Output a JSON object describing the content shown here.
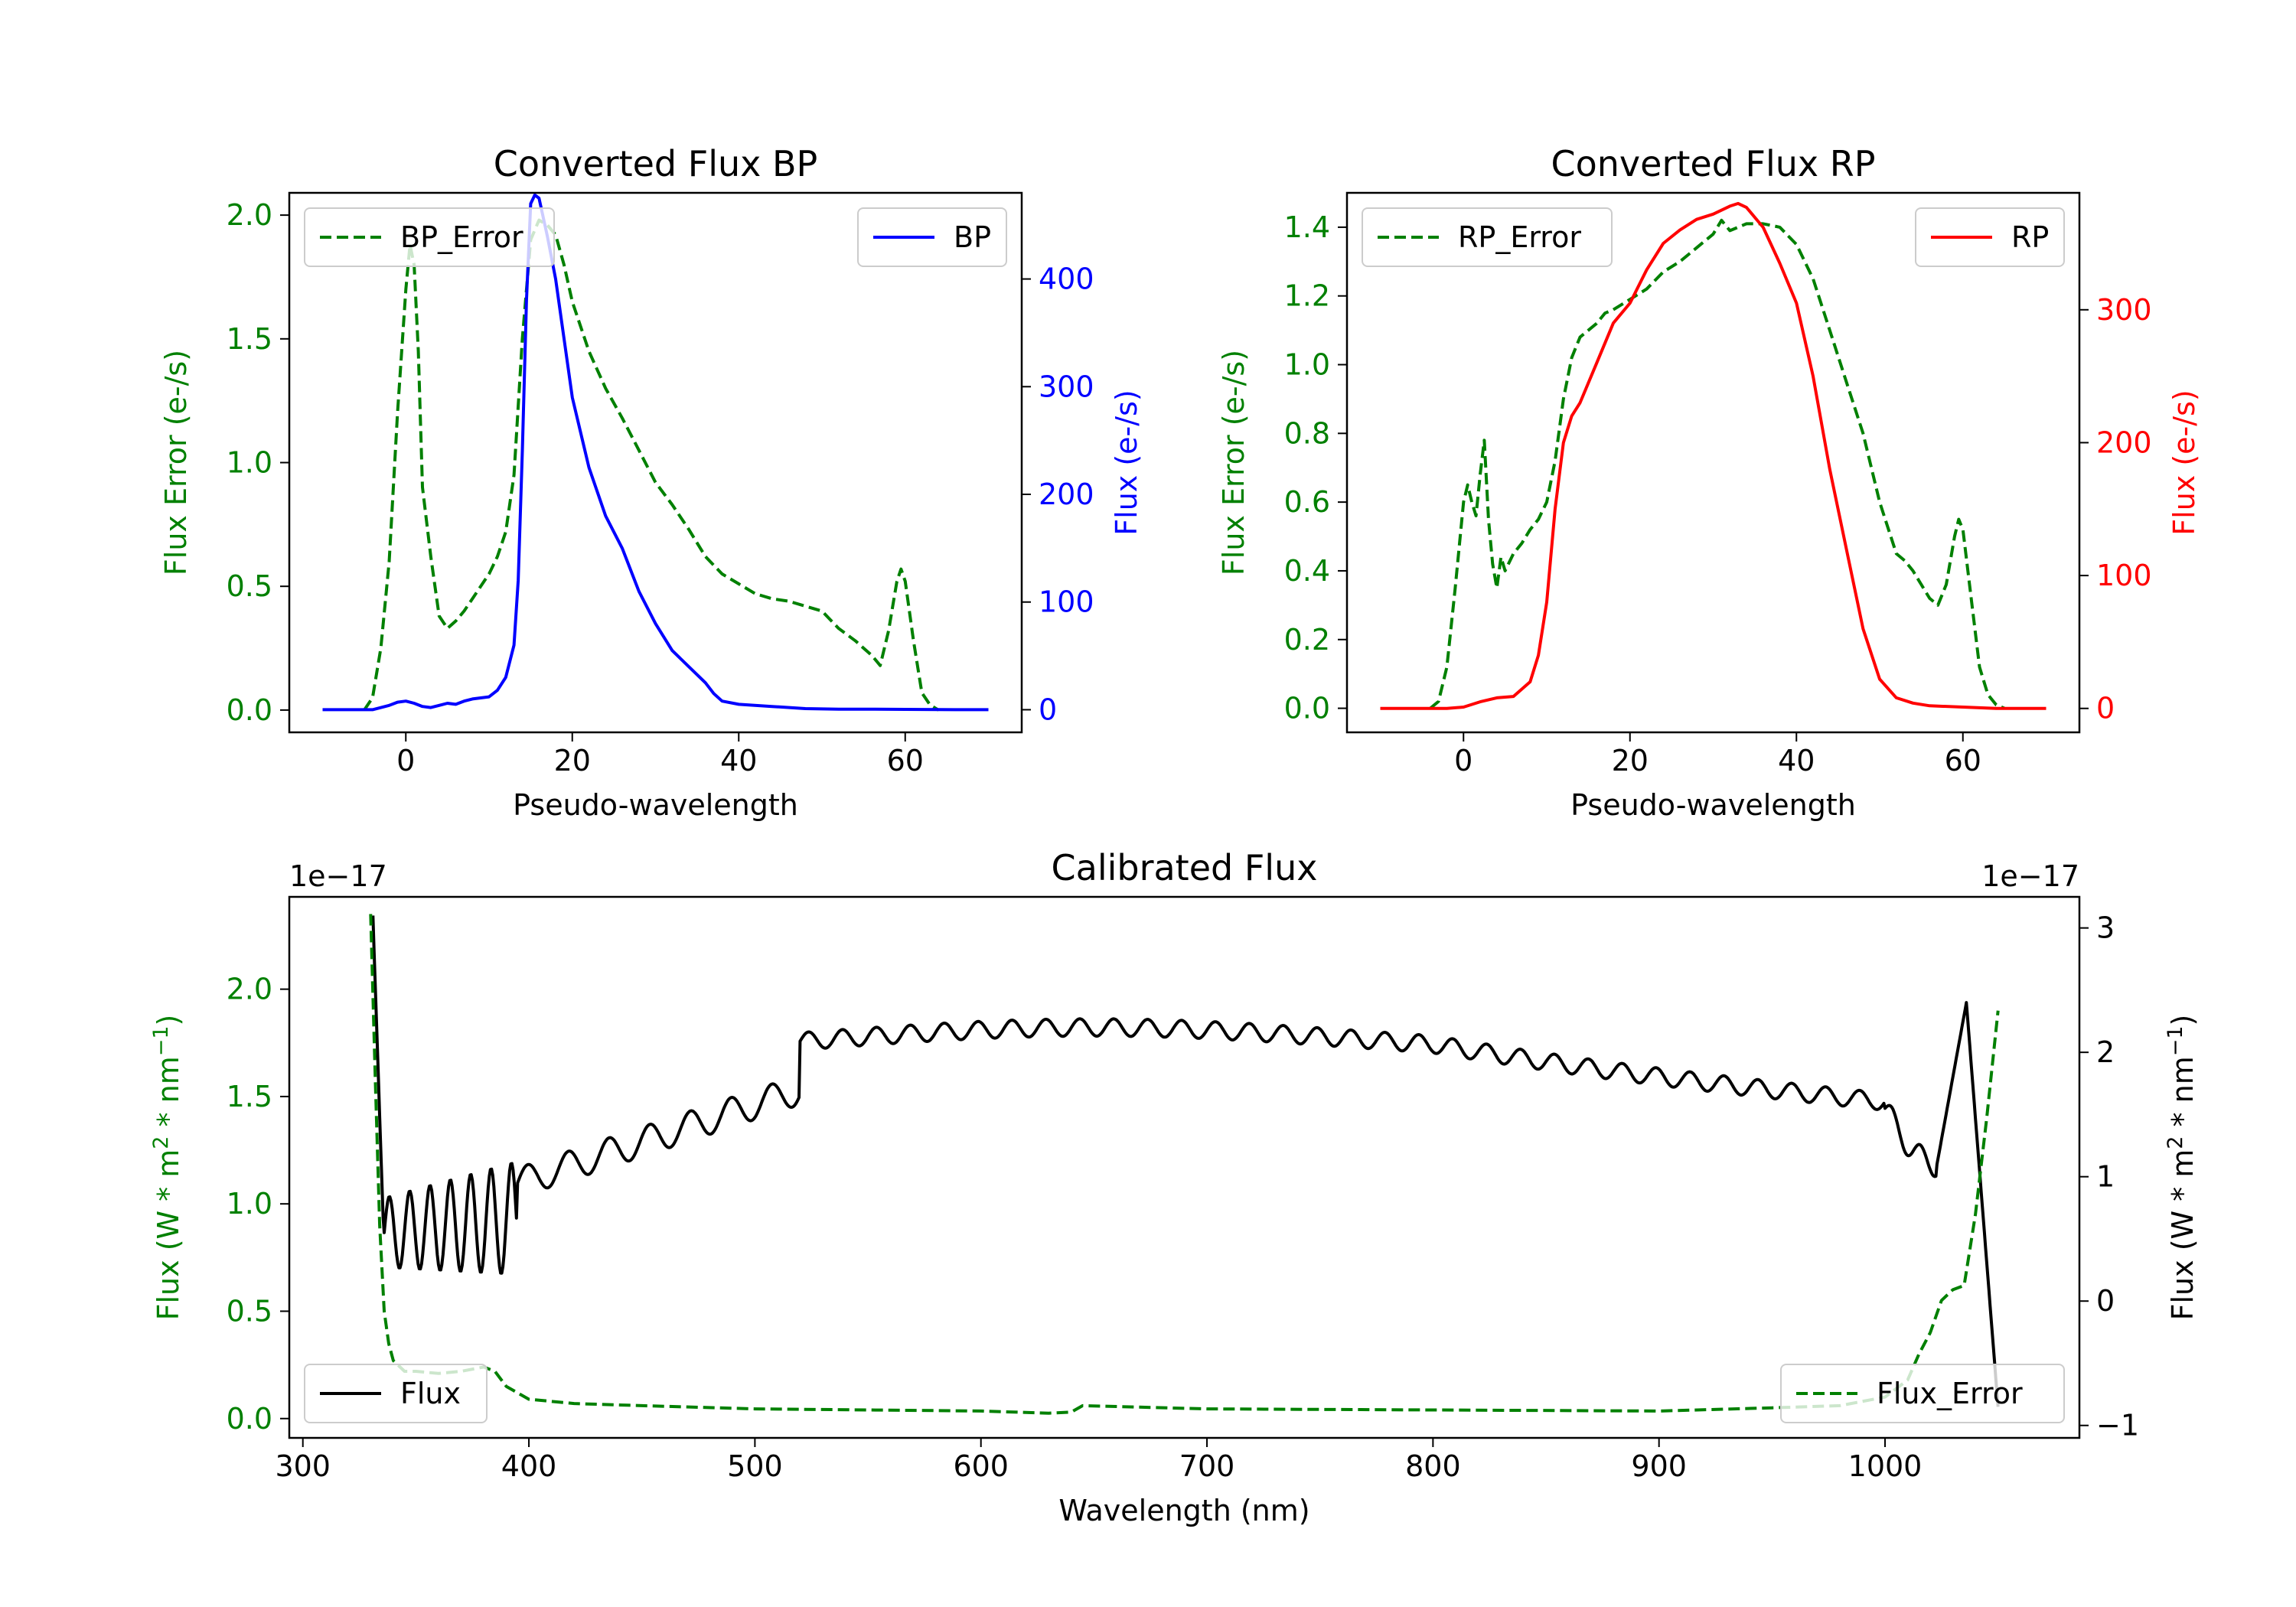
{
  "chart_data": [
    {
      "type": "line",
      "title": "Converted Flux BP",
      "xlabel": "Pseudo-wavelength",
      "ylabel_left": "Flux Error (e-/s)",
      "ylabel_right": "Flux (e-/s)",
      "xlim": [
        -14,
        74
      ],
      "ylim_left": [
        -0.09,
        2.09
      ],
      "ylim_right": [
        -21,
        480
      ],
      "xticks": [
        0,
        20,
        40,
        60
      ],
      "yticks_left": [
        "0.0",
        "0.5",
        "1.0",
        "1.5",
        "2.0"
      ],
      "yticks_right": [
        "0",
        "100",
        "200",
        "300",
        "400"
      ],
      "colors": {
        "left": "#008000",
        "right": "#0000ff"
      },
      "series": [
        {
          "name": "BP_Error",
          "axis": "left",
          "style": "dashed",
          "color": "#008000",
          "x": [
            -5,
            -4,
            -3,
            -2,
            -1,
            0,
            0.5,
            1,
            1.5,
            2,
            3,
            4,
            5,
            6,
            7,
            8,
            9,
            10,
            11,
            12,
            13,
            14,
            15,
            16,
            17,
            18,
            19,
            20,
            22,
            24,
            26,
            28,
            30,
            32,
            34,
            36,
            38,
            40,
            42,
            44,
            46,
            48,
            50,
            52,
            54,
            56,
            57,
            58,
            59,
            59.5,
            60,
            61,
            62,
            63,
            64
          ],
          "y": [
            0,
            0.05,
            0.25,
            0.6,
            1.2,
            1.7,
            1.88,
            1.8,
            1.45,
            0.9,
            0.62,
            0.38,
            0.33,
            0.36,
            0.4,
            0.45,
            0.5,
            0.55,
            0.62,
            0.72,
            0.95,
            1.5,
            1.9,
            1.98,
            1.96,
            1.92,
            1.8,
            1.65,
            1.45,
            1.3,
            1.18,
            1.05,
            0.92,
            0.83,
            0.73,
            0.62,
            0.55,
            0.51,
            0.47,
            0.45,
            0.44,
            0.42,
            0.4,
            0.33,
            0.28,
            0.22,
            0.18,
            0.32,
            0.52,
            0.57,
            0.52,
            0.28,
            0.07,
            0.02,
            0
          ]
        },
        {
          "name": "BP",
          "axis": "right",
          "style": "solid",
          "color": "#0000ff",
          "x": [
            -10,
            -6,
            -4,
            -2,
            -1,
            0,
            1,
            2,
            3,
            4,
            5,
            6,
            7,
            8,
            9,
            10,
            11,
            12,
            13,
            13.5,
            14,
            14.5,
            15,
            15.5,
            16,
            17,
            18,
            19,
            20,
            22,
            24,
            26,
            28,
            30,
            32,
            34,
            36,
            37,
            38,
            40,
            44,
            48,
            52,
            56,
            60,
            64,
            66,
            70
          ],
          "y": [
            0,
            0,
            0,
            4,
            7,
            8,
            6,
            3,
            2,
            4,
            6,
            5,
            8,
            10,
            11,
            12,
            18,
            30,
            60,
            120,
            240,
            380,
            470,
            478,
            475,
            440,
            400,
            345,
            290,
            225,
            180,
            150,
            110,
            80,
            55,
            40,
            25,
            15,
            8,
            5,
            3,
            1,
            0.5,
            0.5,
            0.3,
            0.2,
            0,
            0
          ]
        }
      ],
      "legend": [
        {
          "label": "BP_Error",
          "placement": "upper-left"
        },
        {
          "label": "BP",
          "placement": "upper-right"
        }
      ]
    },
    {
      "type": "line",
      "title": "Converted Flux RP",
      "xlabel": "Pseudo-wavelength",
      "ylabel_left": "Flux Error (e-/s)",
      "ylabel_right": "Flux (e-/s)",
      "xlim": [
        -14,
        74
      ],
      "ylim_left": [
        -0.07,
        1.5
      ],
      "ylim_right": [
        -18,
        388
      ],
      "xticks": [
        0,
        20,
        40,
        60
      ],
      "yticks_left": [
        "0.0",
        "0.2",
        "0.4",
        "0.6",
        "0.8",
        "1.0",
        "1.2",
        "1.4"
      ],
      "yticks_right": [
        "0",
        "100",
        "200",
        "300"
      ],
      "colors": {
        "left": "#008000",
        "right": "#ff0000"
      },
      "series": [
        {
          "name": "RP_Error",
          "axis": "left",
          "style": "dashed",
          "color": "#008000",
          "x": [
            -4,
            -3,
            -2,
            -1,
            0,
            0.5,
            1,
            1.5,
            2,
            2.5,
            3,
            3.5,
            4,
            4.5,
            5,
            6,
            7,
            8,
            9,
            10,
            11,
            12,
            13,
            14,
            15,
            16,
            17,
            18,
            20,
            22,
            24,
            26,
            28,
            30,
            31,
            32,
            34,
            36,
            38,
            40,
            42,
            44,
            46,
            48,
            50,
            52,
            53,
            54,
            55,
            56,
            57,
            58,
            59,
            59.5,
            60,
            61,
            62,
            63,
            64,
            65
          ],
          "y": [
            0,
            0.02,
            0.12,
            0.35,
            0.6,
            0.65,
            0.6,
            0.56,
            0.68,
            0.78,
            0.55,
            0.42,
            0.35,
            0.44,
            0.4,
            0.45,
            0.48,
            0.52,
            0.55,
            0.6,
            0.72,
            0.9,
            1.02,
            1.08,
            1.1,
            1.12,
            1.15,
            1.16,
            1.19,
            1.22,
            1.27,
            1.3,
            1.34,
            1.38,
            1.42,
            1.39,
            1.41,
            1.41,
            1.4,
            1.35,
            1.25,
            1.1,
            0.95,
            0.8,
            0.6,
            0.45,
            0.43,
            0.4,
            0.36,
            0.32,
            0.3,
            0.36,
            0.5,
            0.55,
            0.52,
            0.32,
            0.12,
            0.04,
            0.01,
            0
          ]
        },
        {
          "name": "RP",
          "axis": "right",
          "style": "solid",
          "color": "#ff0000",
          "x": [
            -10,
            -4,
            -2,
            0,
            2,
            4,
            6,
            8,
            9,
            10,
            11,
            12,
            13,
            14,
            16,
            18,
            20,
            22,
            24,
            26,
            28,
            30,
            32,
            33,
            34,
            36,
            38,
            40,
            42,
            44,
            46,
            48,
            50,
            52,
            54,
            56,
            60,
            64,
            66,
            70
          ],
          "y": [
            0,
            0,
            0,
            1,
            5,
            8,
            9,
            20,
            40,
            80,
            150,
            200,
            220,
            230,
            260,
            290,
            305,
            330,
            350,
            360,
            368,
            372,
            378,
            380,
            377,
            362,
            335,
            305,
            250,
            180,
            120,
            60,
            22,
            8,
            4,
            2,
            1,
            0,
            0,
            0
          ]
        }
      ],
      "legend": [
        {
          "label": "RP_Error",
          "placement": "upper-left"
        },
        {
          "label": "RP",
          "placement": "upper-right"
        }
      ]
    },
    {
      "type": "line",
      "title": "Calibrated Flux",
      "xlabel": "Wavelength (nm)",
      "ylabel_left_plain": "Flux (W * m",
      "ylabel_left_sup1": "2",
      "ylabel_left_mid": " * nm",
      "ylabel_left_sup2": "−1",
      "ylabel_left_end": ")",
      "offset_left": "1e−17",
      "offset_right": "1e−17",
      "xlim": [
        294,
        1086
      ],
      "ylim_left": [
        -0.09,
        2.43
      ],
      "ylim_right": [
        -1.1,
        3.25
      ],
      "xticks": [
        300,
        400,
        500,
        600,
        700,
        800,
        900,
        1000
      ],
      "yticks_left": [
        "0.0",
        "0.5",
        "1.0",
        "1.5",
        "2.0"
      ],
      "yticks_right": [
        "−1",
        "0",
        "1",
        "2",
        "3"
      ],
      "colors": {
        "left": "#008000",
        "right": "#000000"
      },
      "series": [
        {
          "name": "Flux",
          "axis": "right",
          "style": "solid",
          "color": "#000000",
          "note": "oscillating curve; values in units of 1e-17"
        },
        {
          "name": "Flux_Error",
          "axis": "left",
          "style": "dashed",
          "color": "#008000",
          "x": [
            330,
            332,
            334,
            336,
            338,
            340,
            345,
            350,
            360,
            370,
            380,
            385,
            390,
            400,
            420,
            450,
            500,
            550,
            600,
            630,
            640,
            645,
            700,
            800,
            900,
            950,
            980,
            1000,
            1010,
            1015,
            1020,
            1025,
            1030,
            1035,
            1040,
            1045,
            1050
          ],
          "y": [
            2.35,
            1.6,
            0.9,
            0.5,
            0.35,
            0.27,
            0.22,
            0.22,
            0.21,
            0.22,
            0.24,
            0.22,
            0.15,
            0.09,
            0.07,
            0.06,
            0.045,
            0.04,
            0.035,
            0.025,
            0.03,
            0.06,
            0.045,
            0.04,
            0.035,
            0.05,
            0.06,
            0.1,
            0.18,
            0.3,
            0.4,
            0.55,
            0.6,
            0.62,
            0.95,
            1.4,
            1.9
          ]
        }
      ],
      "legend": [
        {
          "label": "Flux",
          "placement": "lower-left"
        },
        {
          "label": "Flux_Error",
          "placement": "lower-right"
        }
      ]
    }
  ]
}
